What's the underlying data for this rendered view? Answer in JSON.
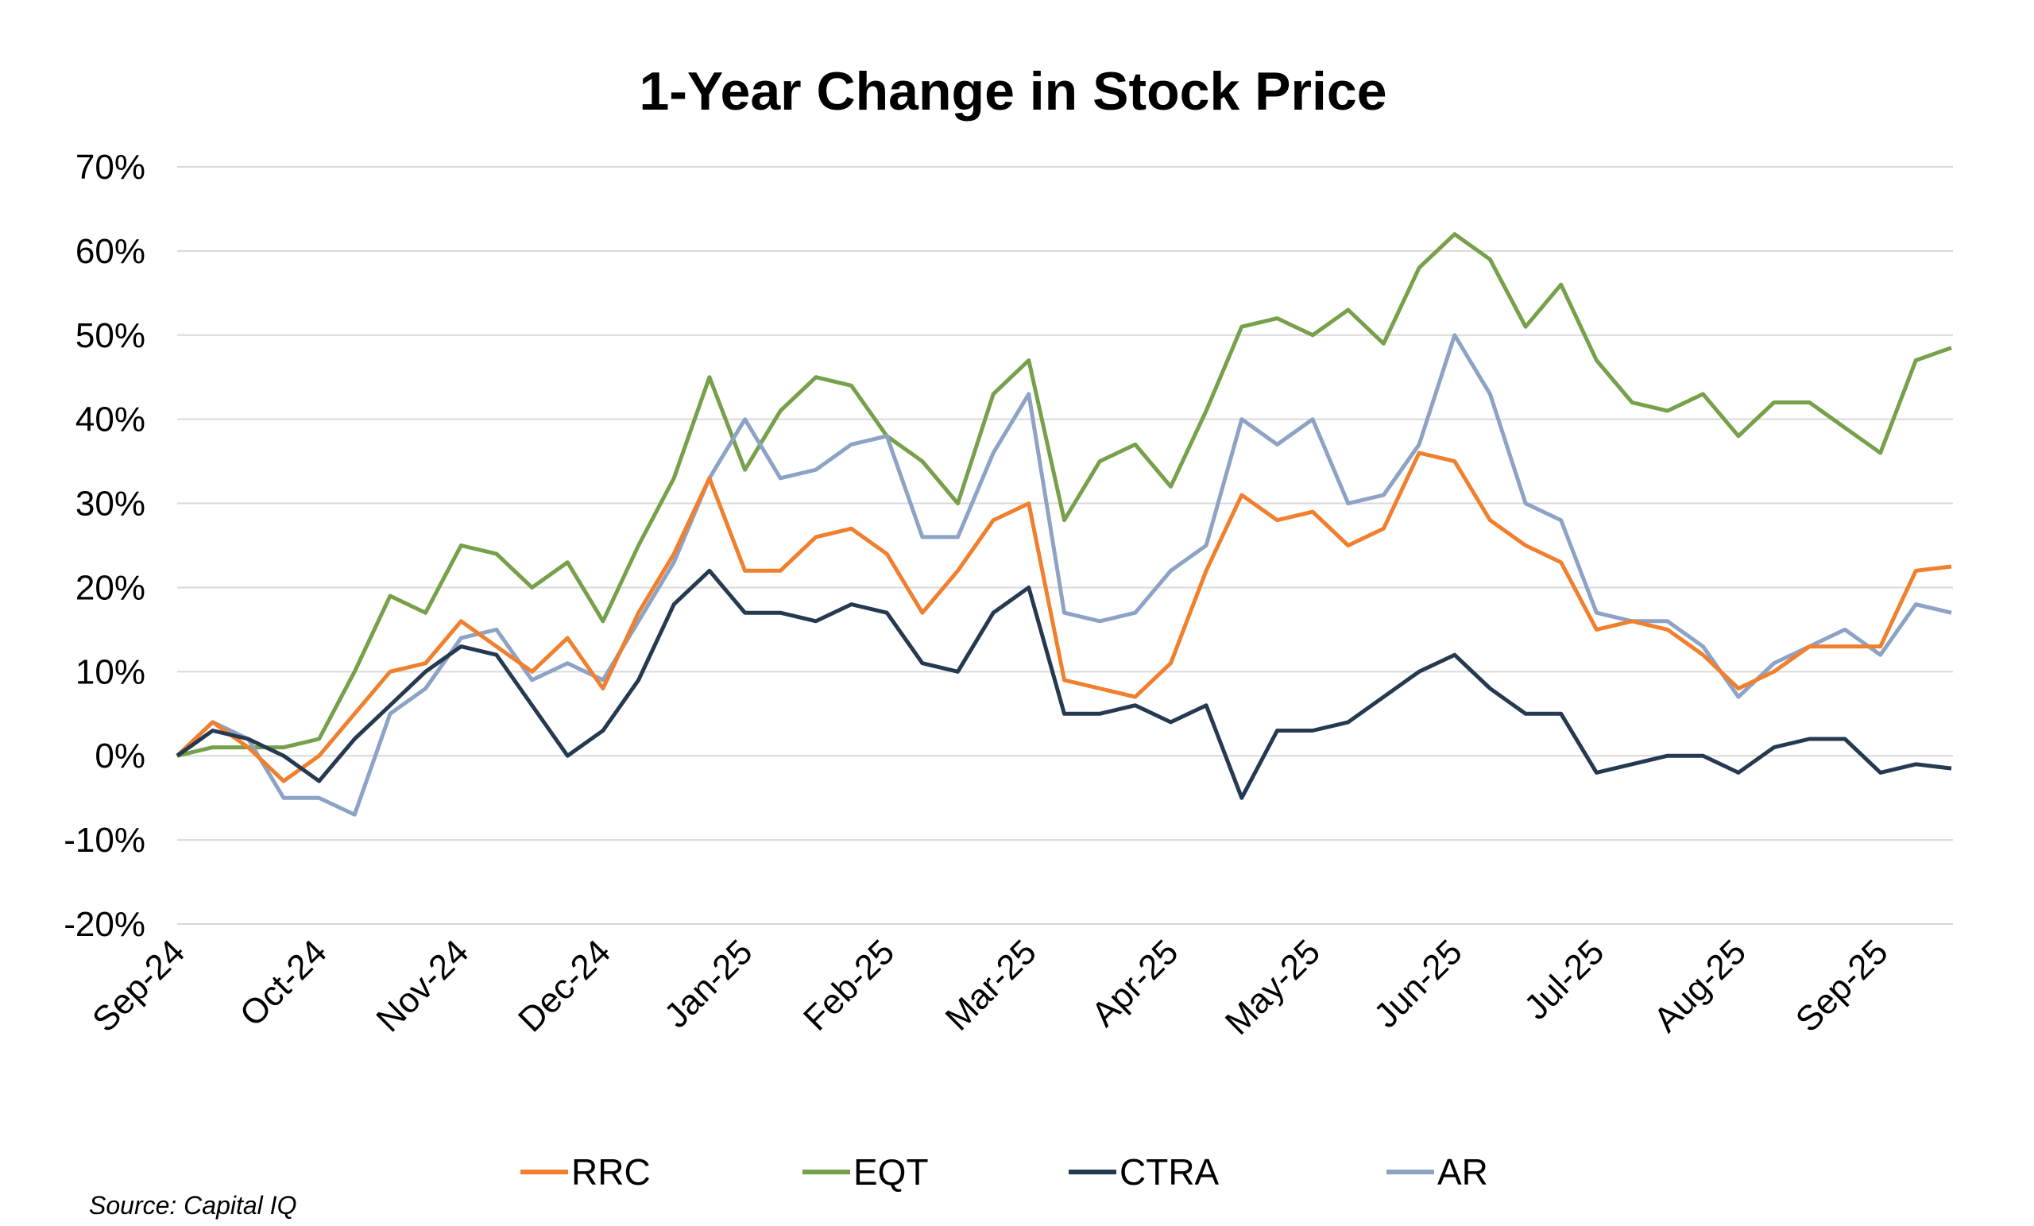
{
  "chart_data": {
    "type": "line",
    "title": "1-Year Change in Stock Price",
    "source": "Source: Capital IQ",
    "categories": [
      "Sep-24",
      null,
      null,
      null,
      "Oct-24",
      null,
      null,
      null,
      "Nov-24",
      null,
      null,
      null,
      "Dec-24",
      null,
      null,
      null,
      "Jan-25",
      null,
      null,
      null,
      "Feb-25",
      null,
      null,
      null,
      "Mar-25",
      null,
      null,
      null,
      "Apr-25",
      null,
      null,
      null,
      "May-25",
      null,
      null,
      null,
      "Jun-25",
      null,
      null,
      null,
      "Jul-25",
      null,
      null,
      null,
      "Aug-25",
      null,
      null,
      null,
      "Sep-25",
      null,
      null
    ],
    "series": [
      {
        "name": "RRC",
        "color": "#f07f2e",
        "values": [
          0,
          4,
          1,
          -3,
          0,
          5,
          10,
          11,
          16,
          13,
          10,
          14,
          8,
          17,
          24,
          33,
          22,
          22,
          26,
          27,
          24,
          17,
          22,
          28,
          30,
          9,
          8,
          7,
          11,
          22,
          31,
          28,
          29,
          25,
          27,
          36,
          35,
          28,
          25,
          23,
          15,
          16,
          15,
          12,
          8,
          10,
          13,
          13,
          13,
          22,
          22.5
        ]
      },
      {
        "name": "EQT",
        "color": "#77a04a",
        "values": [
          0,
          1,
          1,
          1,
          2,
          10,
          19,
          17,
          25,
          24,
          20,
          23,
          16,
          25,
          33,
          45,
          34,
          41,
          45,
          44,
          38,
          35,
          30,
          43,
          47,
          28,
          35,
          37,
          32,
          41,
          51,
          52,
          50,
          53,
          49,
          58,
          62,
          59,
          51,
          56,
          47,
          42,
          41,
          43,
          38,
          42,
          42,
          39,
          36,
          47,
          48.5
        ]
      },
      {
        "name": "CTRA",
        "color": "#253a50",
        "values": [
          0,
          3,
          2,
          0,
          -3,
          2,
          6,
          10,
          13,
          12,
          6,
          0,
          3,
          9,
          18,
          22,
          17,
          17,
          16,
          18,
          17,
          11,
          10,
          17,
          20,
          5,
          5,
          6,
          4,
          6,
          -5,
          3,
          3,
          4,
          7,
          10,
          12,
          8,
          5,
          5,
          -2,
          -1,
          0,
          0,
          -2,
          1,
          2,
          2,
          -2,
          -1,
          -1.5
        ]
      },
      {
        "name": "AR",
        "color": "#8da3c5",
        "values": [
          0,
          4,
          2,
          -5,
          -5,
          -7,
          5,
          8,
          14,
          15,
          9,
          11,
          9,
          16,
          23,
          33,
          40,
          33,
          34,
          37,
          38,
          26,
          26,
          36,
          43,
          17,
          16,
          17,
          22,
          25,
          40,
          37,
          40,
          30,
          31,
          37,
          50,
          43,
          30,
          28,
          17,
          16,
          16,
          13,
          7,
          11,
          13,
          15,
          12,
          18,
          17
        ]
      }
    ],
    "ylim": [
      -20,
      70
    ],
    "yticks": [
      {
        "value": -20,
        "label": "-20%"
      },
      {
        "value": -10,
        "label": "-10%"
      },
      {
        "value": 0,
        "label": "0%"
      },
      {
        "value": 10,
        "label": "10%"
      },
      {
        "value": 20,
        "label": "20%"
      },
      {
        "value": 30,
        "label": "30%"
      },
      {
        "value": 40,
        "label": "40%"
      },
      {
        "value": 50,
        "label": "50%"
      },
      {
        "value": 60,
        "label": "60%"
      },
      {
        "value": 70,
        "label": "70%"
      }
    ],
    "grid": true
  }
}
